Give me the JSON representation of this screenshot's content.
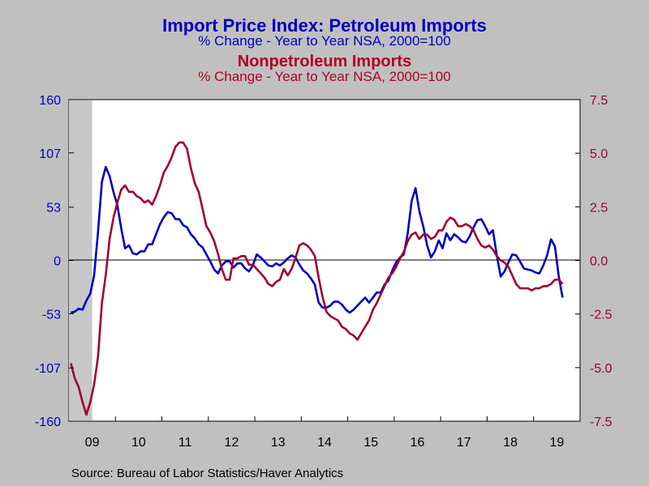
{
  "titles": {
    "left_title": "Import Price Index: Petroleum Imports",
    "left_subtitle": "% Change - Year to Year    NSA, 2000=100",
    "right_title": "Nonpetroleum Imports",
    "right_subtitle": "% Change - Year to Year    NSA, 2000=100"
  },
  "source": "Source:  Bureau of Labor Statistics/Haver Analytics",
  "colors": {
    "petroleum": "#0000C0",
    "nonpetroleum": "#A00030",
    "background": "#C0C0C0",
    "plot_area": "#FFFFFF",
    "recession_shade": "#C8C8C8"
  },
  "chart_data": {
    "type": "line",
    "grid": false,
    "legend": "none",
    "x_tick_labels": [
      "09",
      "10",
      "11",
      "12",
      "13",
      "14",
      "15",
      "16",
      "17",
      "18",
      "19"
    ],
    "xlim": [
      "2009-01",
      "2019-12"
    ],
    "recession_shading": [
      "2009-01",
      "2009-06"
    ],
    "left_axis": {
      "ticks": [
        160,
        107,
        53,
        0,
        -53,
        -107,
        -160
      ],
      "ylim": [
        -160,
        160
      ]
    },
    "right_axis": {
      "ticks": [
        "7.5",
        "5.0",
        "2.5",
        "0.0",
        "-2.5",
        "-5.0",
        "-7.5"
      ],
      "ylim": [
        -7.5,
        7.5
      ]
    },
    "series": [
      {
        "axis": "left",
        "color": "#0000C0",
        "points": [
          [
            "2009-01",
            -52
          ],
          [
            "2009-02",
            -51
          ],
          [
            "2009-03",
            -48
          ],
          [
            "2009-04",
            -49
          ],
          [
            "2009-05",
            -40
          ],
          [
            "2009-06",
            -33
          ],
          [
            "2009-07",
            -15
          ],
          [
            "2009-08",
            28
          ],
          [
            "2009-09",
            78
          ],
          [
            "2009-10",
            93
          ],
          [
            "2009-11",
            84
          ],
          [
            "2009-12",
            68
          ],
          [
            "2010-01",
            55
          ],
          [
            "2010-02",
            32
          ],
          [
            "2010-03",
            12
          ],
          [
            "2010-04",
            15
          ],
          [
            "2010-05",
            7
          ],
          [
            "2010-06",
            6
          ],
          [
            "2010-07",
            9
          ],
          [
            "2010-08",
            9
          ],
          [
            "2010-09",
            16
          ],
          [
            "2010-10",
            16
          ],
          [
            "2010-11",
            26
          ],
          [
            "2010-12",
            36
          ],
          [
            "2011-01",
            43
          ],
          [
            "2011-02",
            48
          ],
          [
            "2011-03",
            47
          ],
          [
            "2011-04",
            41
          ],
          [
            "2011-05",
            41
          ],
          [
            "2011-06",
            35
          ],
          [
            "2011-07",
            33
          ],
          [
            "2011-08",
            26
          ],
          [
            "2011-09",
            22
          ],
          [
            "2011-10",
            16
          ],
          [
            "2011-11",
            13
          ],
          [
            "2011-12",
            6
          ],
          [
            "2012-01",
            -1
          ],
          [
            "2012-02",
            -9
          ],
          [
            "2012-03",
            -13
          ],
          [
            "2012-04",
            -5
          ],
          [
            "2012-05",
            -1
          ],
          [
            "2012-06",
            -1
          ],
          [
            "2012-07",
            -7
          ],
          [
            "2012-08",
            -3
          ],
          [
            "2012-09",
            -3
          ],
          [
            "2012-10",
            -8
          ],
          [
            "2012-11",
            -11
          ],
          [
            "2012-12",
            -5
          ],
          [
            "2013-01",
            6
          ],
          [
            "2013-02",
            3
          ],
          [
            "2013-03",
            -1
          ],
          [
            "2013-04",
            -5
          ],
          [
            "2013-05",
            -6
          ],
          [
            "2013-06",
            -3
          ],
          [
            "2013-07",
            -5
          ],
          [
            "2013-08",
            -2
          ],
          [
            "2013-09",
            2
          ],
          [
            "2013-10",
            5
          ],
          [
            "2013-11",
            3
          ],
          [
            "2013-12",
            -4
          ],
          [
            "2014-01",
            -10
          ],
          [
            "2014-02",
            -13
          ],
          [
            "2014-03",
            -18
          ],
          [
            "2014-04",
            -24
          ],
          [
            "2014-05",
            -42
          ],
          [
            "2014-06",
            -47
          ],
          [
            "2014-07",
            -47
          ],
          [
            "2014-08",
            -45
          ],
          [
            "2014-09",
            -41
          ],
          [
            "2014-10",
            -41
          ],
          [
            "2014-11",
            -44
          ],
          [
            "2014-12",
            -49
          ],
          [
            "2015-01",
            -52
          ],
          [
            "2015-02",
            -49
          ],
          [
            "2015-03",
            -45
          ],
          [
            "2015-04",
            -41
          ],
          [
            "2015-05",
            -37
          ],
          [
            "2015-06",
            -42
          ],
          [
            "2015-07",
            -37
          ],
          [
            "2015-08",
            -32
          ],
          [
            "2015-09",
            -32
          ],
          [
            "2015-10",
            -24
          ],
          [
            "2015-11",
            -20
          ],
          [
            "2015-12",
            -10
          ],
          [
            "2016-01",
            -2
          ],
          [
            "2016-02",
            3
          ],
          [
            "2016-03",
            6
          ],
          [
            "2016-04",
            27
          ],
          [
            "2016-05",
            59
          ],
          [
            "2016-06",
            72
          ],
          [
            "2016-07",
            49
          ],
          [
            "2016-08",
            34
          ],
          [
            "2016-09",
            15
          ],
          [
            "2016-10",
            3
          ],
          [
            "2016-11",
            9
          ],
          [
            "2016-12",
            20
          ],
          [
            "2017-01",
            12
          ],
          [
            "2017-02",
            27
          ],
          [
            "2017-03",
            20
          ],
          [
            "2017-04",
            26
          ],
          [
            "2017-05",
            23
          ],
          [
            "2017-06",
            19
          ],
          [
            "2017-07",
            18
          ],
          [
            "2017-08",
            24
          ],
          [
            "2017-09",
            33
          ],
          [
            "2017-10",
            40
          ],
          [
            "2017-11",
            41
          ],
          [
            "2017-12",
            34
          ],
          [
            "2018-01",
            26
          ],
          [
            "2018-02",
            30
          ],
          [
            "2018-03",
            5
          ],
          [
            "2018-04",
            -16
          ],
          [
            "2018-05",
            -11
          ],
          [
            "2018-06",
            -2
          ],
          [
            "2018-07",
            6
          ],
          [
            "2018-08",
            5
          ],
          [
            "2018-09",
            -1
          ],
          [
            "2018-10",
            -8
          ],
          [
            "2018-11",
            -9
          ],
          [
            "2018-12",
            -10
          ],
          [
            "2019-01",
            -12
          ],
          [
            "2019-02",
            -13
          ],
          [
            "2019-03",
            -5
          ],
          [
            "2019-04",
            5
          ],
          [
            "2019-05",
            21
          ],
          [
            "2019-06",
            14
          ],
          [
            "2019-07",
            -16
          ],
          [
            "2019-08",
            -37
          ]
        ]
      },
      {
        "axis": "right",
        "color": "#A00030",
        "points": [
          [
            "2009-01",
            -4.8
          ],
          [
            "2009-02",
            -5.5
          ],
          [
            "2009-03",
            -5.9
          ],
          [
            "2009-04",
            -6.6
          ],
          [
            "2009-05",
            -7.2
          ],
          [
            "2009-06",
            -6.6
          ],
          [
            "2009-07",
            -5.8
          ],
          [
            "2009-08",
            -4.5
          ],
          [
            "2009-09",
            -2.0
          ],
          [
            "2009-10",
            -0.7
          ],
          [
            "2009-11",
            1.0
          ],
          [
            "2009-12",
            2.0
          ],
          [
            "2010-01",
            2.7
          ],
          [
            "2010-02",
            3.3
          ],
          [
            "2010-03",
            3.5
          ],
          [
            "2010-04",
            3.2
          ],
          [
            "2010-05",
            3.2
          ],
          [
            "2010-06",
            3.0
          ],
          [
            "2010-07",
            2.9
          ],
          [
            "2010-08",
            2.7
          ],
          [
            "2010-09",
            2.8
          ],
          [
            "2010-10",
            2.6
          ],
          [
            "2010-11",
            3.0
          ],
          [
            "2010-12",
            3.5
          ],
          [
            "2011-01",
            4.1
          ],
          [
            "2011-02",
            4.4
          ],
          [
            "2011-03",
            4.8
          ],
          [
            "2011-04",
            5.3
          ],
          [
            "2011-05",
            5.5
          ],
          [
            "2011-06",
            5.5
          ],
          [
            "2011-07",
            5.2
          ],
          [
            "2011-08",
            4.3
          ],
          [
            "2011-09",
            3.6
          ],
          [
            "2011-10",
            3.2
          ],
          [
            "2011-11",
            2.4
          ],
          [
            "2011-12",
            1.6
          ],
          [
            "2012-01",
            1.3
          ],
          [
            "2012-02",
            0.9
          ],
          [
            "2012-03",
            0.3
          ],
          [
            "2012-04",
            -0.4
          ],
          [
            "2012-05",
            -0.9
          ],
          [
            "2012-06",
            -0.9
          ],
          [
            "2012-07",
            0.1
          ],
          [
            "2012-08",
            0.1
          ],
          [
            "2012-09",
            0.2
          ],
          [
            "2012-10",
            0.2
          ],
          [
            "2012-11",
            -0.2
          ],
          [
            "2012-12",
            -0.2
          ],
          [
            "2013-01",
            -0.4
          ],
          [
            "2013-02",
            -0.6
          ],
          [
            "2013-03",
            -0.8
          ],
          [
            "2013-04",
            -1.1
          ],
          [
            "2013-05",
            -1.2
          ],
          [
            "2013-06",
            -1.0
          ],
          [
            "2013-07",
            -0.9
          ],
          [
            "2013-08",
            -0.4
          ],
          [
            "2013-09",
            -0.7
          ],
          [
            "2013-10",
            -0.4
          ],
          [
            "2013-11",
            0.1
          ],
          [
            "2013-12",
            0.7
          ],
          [
            "2014-01",
            0.8
          ],
          [
            "2014-02",
            0.7
          ],
          [
            "2014-03",
            0.5
          ],
          [
            "2014-04",
            0.2
          ],
          [
            "2014-05",
            -0.8
          ],
          [
            "2014-06",
            -1.7
          ],
          [
            "2014-07",
            -2.4
          ],
          [
            "2014-08",
            -2.6
          ],
          [
            "2014-09",
            -2.7
          ],
          [
            "2014-10",
            -2.8
          ],
          [
            "2014-11",
            -3.1
          ],
          [
            "2014-12",
            -3.2
          ],
          [
            "2015-01",
            -3.4
          ],
          [
            "2015-02",
            -3.5
          ],
          [
            "2015-03",
            -3.7
          ],
          [
            "2015-04",
            -3.4
          ],
          [
            "2015-05",
            -3.1
          ],
          [
            "2015-06",
            -2.8
          ],
          [
            "2015-07",
            -2.3
          ],
          [
            "2015-08",
            -2.0
          ],
          [
            "2015-09",
            -1.6
          ],
          [
            "2015-10",
            -1.2
          ],
          [
            "2015-11",
            -0.8
          ],
          [
            "2015-12",
            -0.6
          ],
          [
            "2016-01",
            -0.3
          ],
          [
            "2016-02",
            0.1
          ],
          [
            "2016-03",
            0.4
          ],
          [
            "2016-04",
            0.9
          ],
          [
            "2016-05",
            1.2
          ],
          [
            "2016-06",
            1.3
          ],
          [
            "2016-07",
            1.0
          ],
          [
            "2016-08",
            1.2
          ],
          [
            "2016-09",
            1.2
          ],
          [
            "2016-10",
            1.0
          ],
          [
            "2016-11",
            1.1
          ],
          [
            "2016-12",
            1.4
          ],
          [
            "2017-01",
            1.4
          ],
          [
            "2017-02",
            1.8
          ],
          [
            "2017-03",
            2.0
          ],
          [
            "2017-04",
            1.9
          ],
          [
            "2017-05",
            1.6
          ],
          [
            "2017-06",
            1.6
          ],
          [
            "2017-07",
            1.7
          ],
          [
            "2017-08",
            1.6
          ],
          [
            "2017-09",
            1.4
          ],
          [
            "2017-10",
            1.0
          ],
          [
            "2017-11",
            0.7
          ],
          [
            "2017-12",
            0.6
          ],
          [
            "2018-01",
            0.7
          ],
          [
            "2018-02",
            0.5
          ],
          [
            "2018-03",
            0.2
          ],
          [
            "2018-04",
            0.0
          ],
          [
            "2018-05",
            -0.1
          ],
          [
            "2018-06",
            -0.3
          ],
          [
            "2018-07",
            -0.7
          ],
          [
            "2018-08",
            -1.1
          ],
          [
            "2018-09",
            -1.3
          ],
          [
            "2018-10",
            -1.3
          ],
          [
            "2018-11",
            -1.3
          ],
          [
            "2018-12",
            -1.4
          ],
          [
            "2019-01",
            -1.3
          ],
          [
            "2019-02",
            -1.3
          ],
          [
            "2019-03",
            -1.2
          ],
          [
            "2019-04",
            -1.2
          ],
          [
            "2019-05",
            -1.1
          ],
          [
            "2019-06",
            -0.9
          ],
          [
            "2019-07",
            -0.9
          ],
          [
            "2019-08",
            -1.1
          ]
        ]
      }
    ]
  }
}
